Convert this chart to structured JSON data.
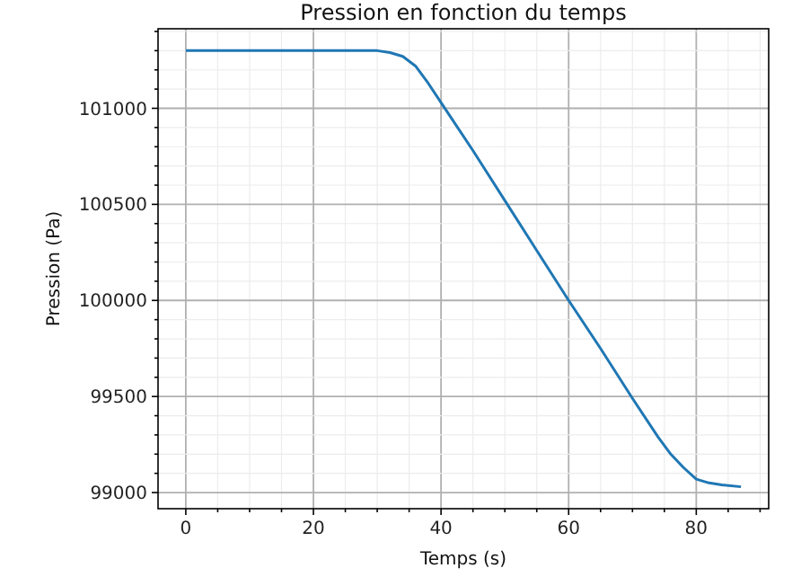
{
  "chart_data": {
    "type": "line",
    "title": "Pression en fonction du temps",
    "xlabel": "Temps (s)",
    "ylabel": "Pression (Pa)",
    "x": [
      0,
      10,
      20,
      28,
      30,
      32,
      34,
      36,
      38,
      40,
      45,
      50,
      55,
      60,
      65,
      70,
      74,
      76,
      78,
      80,
      82,
      84,
      87
    ],
    "series": [
      {
        "color": "#1f77b4",
        "values": [
          101300,
          101300,
          101300,
          101300,
          101300,
          101290,
          101270,
          101220,
          101130,
          101030,
          100780,
          100520,
          100260,
          100000,
          99750,
          99490,
          99290,
          99200,
          99130,
          99070,
          99050,
          99040,
          99030
        ]
      }
    ],
    "xlim": [
      -4.35,
      91.35
    ],
    "ylim": [
      98916,
      101414
    ],
    "xticks": [
      0,
      {
        "value": 5,
        "label": null
      },
      {
        "value": 10,
        "label": null
      },
      {
        "value": 15,
        "label": null
      },
      20,
      {
        "value": 25,
        "label": null
      },
      {
        "value": 30,
        "label": null
      },
      {
        "value": 35,
        "label": null
      },
      40,
      {
        "value": 45,
        "label": null
      },
      {
        "value": 50,
        "label": null
      },
      {
        "value": 55,
        "label": null
      },
      60,
      {
        "value": 65,
        "label": null
      },
      {
        "value": 70,
        "label": null
      },
      {
        "value": 75,
        "label": null
      },
      80,
      {
        "value": 85,
        "label": null
      },
      {
        "value": 90,
        "label": null
      }
    ],
    "yticks": [
      99000,
      {
        "value": 99100,
        "label": null
      },
      {
        "value": 99200,
        "label": null
      },
      {
        "value": 99300,
        "label": null
      },
      {
        "value": 99400,
        "label": null
      },
      99500,
      {
        "value": 99600,
        "label": null
      },
      {
        "value": 99700,
        "label": null
      },
      {
        "value": 99800,
        "label": null
      },
      {
        "value": 99900,
        "label": null
      },
      100000,
      {
        "value": 100100,
        "label": null
      },
      {
        "value": 100200,
        "label": null
      },
      {
        "value": 100300,
        "label": null
      },
      {
        "value": 100400,
        "label": null
      },
      100500,
      {
        "value": 100600,
        "label": null
      },
      {
        "value": 100700,
        "label": null
      },
      {
        "value": 100800,
        "label": null
      },
      {
        "value": 100900,
        "label": null
      },
      101000,
      {
        "value": 101100,
        "label": null
      },
      {
        "value": 101200,
        "label": null
      },
      {
        "value": 101300,
        "label": null
      },
      {
        "value": 101400,
        "label": null
      }
    ],
    "grid": true,
    "marker": "none",
    "line_style": "solid"
  }
}
